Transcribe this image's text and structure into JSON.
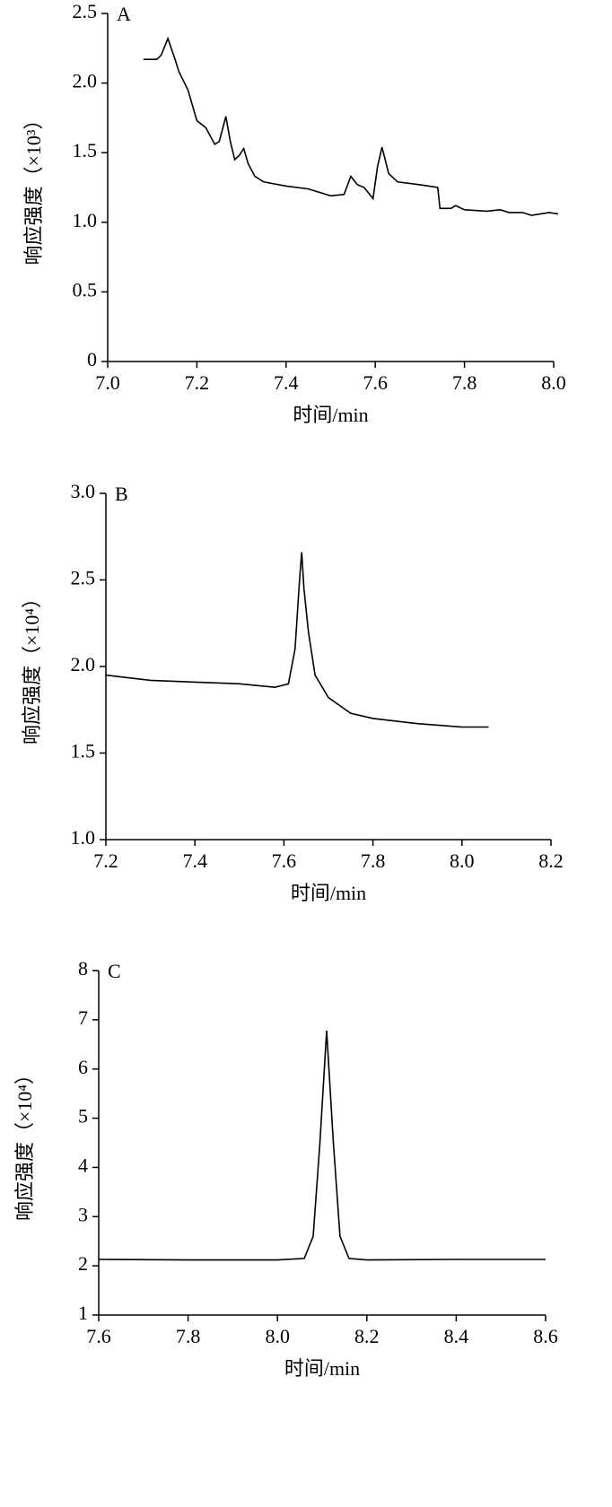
{
  "chart_data": [
    {
      "type": "line",
      "label": "A",
      "xlabel": "时间/min",
      "ylabel": "响应强度（×10³）",
      "color": "#000000",
      "xlim": [
        7.0,
        8.0
      ],
      "xticks": [
        {
          "value": 7,
          "label": "7.0"
        },
        7.2,
        7.4,
        7.6,
        7.8,
        {
          "value": 8,
          "label": "8.0"
        }
      ],
      "ylim": [
        0,
        2.5
      ],
      "yticks": [
        0,
        0.5,
        {
          "value": 1,
          "label": "1.0"
        },
        1.5,
        {
          "value": 2,
          "label": "2.0"
        },
        2.5
      ],
      "x": [
        7.08,
        7.11,
        7.12,
        7.135,
        7.15,
        7.16,
        7.18,
        7.2,
        7.22,
        7.24,
        7.25,
        7.265,
        7.275,
        7.285,
        7.295,
        7.305,
        7.315,
        7.33,
        7.35,
        7.4,
        7.45,
        7.5,
        7.53,
        7.545,
        7.56,
        7.575,
        7.595,
        7.605,
        7.615,
        7.63,
        7.65,
        7.7,
        7.74,
        7.745,
        7.77,
        7.78,
        7.8,
        7.85,
        7.88,
        7.9,
        7.93,
        7.95,
        7.99,
        8.01
      ],
      "values": [
        2.17,
        2.17,
        2.2,
        2.32,
        2.18,
        2.08,
        1.95,
        1.73,
        1.68,
        1.56,
        1.58,
        1.76,
        1.58,
        1.45,
        1.48,
        1.53,
        1.42,
        1.33,
        1.29,
        1.26,
        1.24,
        1.19,
        1.2,
        1.33,
        1.27,
        1.25,
        1.17,
        1.4,
        1.54,
        1.35,
        1.29,
        1.27,
        1.25,
        1.1,
        1.1,
        1.12,
        1.09,
        1.08,
        1.09,
        1.07,
        1.07,
        1.05,
        1.07,
        1.06
      ]
    },
    {
      "type": "line",
      "label": "B",
      "xlabel": "时间/min",
      "ylabel": "响应强度（×10⁴）",
      "color": "#000000",
      "xlim": [
        7.2,
        8.2
      ],
      "xticks": [
        7.2,
        7.4,
        7.6,
        7.8,
        {
          "value": 8,
          "label": "8.0"
        },
        8.2
      ],
      "ylim": [
        1.0,
        3.0
      ],
      "yticks": [
        {
          "value": 1,
          "label": "1.0"
        },
        1.5,
        {
          "value": 2,
          "label": "2.0"
        },
        2.5,
        {
          "value": 3,
          "label": "3.0"
        }
      ],
      "x": [
        7.2,
        7.3,
        7.4,
        7.5,
        7.58,
        7.61,
        7.625,
        7.635,
        7.64,
        7.645,
        7.655,
        7.67,
        7.7,
        7.75,
        7.8,
        7.9,
        8.0,
        8.06
      ],
      "values": [
        1.95,
        1.92,
        1.91,
        1.9,
        1.88,
        1.9,
        2.1,
        2.5,
        2.66,
        2.45,
        2.2,
        1.95,
        1.82,
        1.73,
        1.7,
        1.67,
        1.65,
        1.65
      ]
    },
    {
      "type": "line",
      "label": "C",
      "xlabel": "时间/min",
      "ylabel": "响应强度（×10⁴）",
      "color": "#000000",
      "xlim": [
        7.6,
        8.6
      ],
      "xticks": [
        7.6,
        7.8,
        {
          "value": 8,
          "label": "8.0"
        },
        8.2,
        8.4,
        8.6
      ],
      "ylim": [
        1,
        8
      ],
      "yticks": [
        1,
        2,
        3,
        4,
        5,
        6,
        7,
        8
      ],
      "x": [
        7.6,
        7.8,
        8.0,
        8.06,
        8.08,
        8.095,
        8.11,
        8.125,
        8.14,
        8.16,
        8.2,
        8.4,
        8.6
      ],
      "values": [
        2.13,
        2.12,
        2.12,
        2.15,
        2.6,
        4.5,
        6.78,
        4.5,
        2.6,
        2.15,
        2.12,
        2.13,
        2.13
      ]
    }
  ]
}
